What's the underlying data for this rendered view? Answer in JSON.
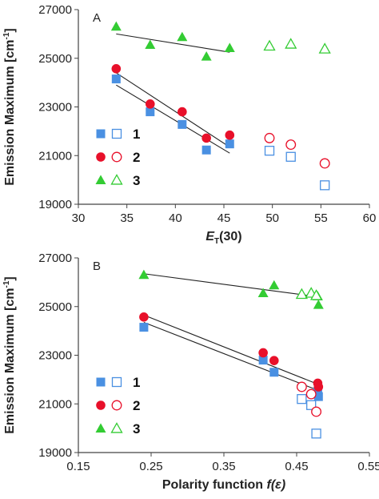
{
  "colors": {
    "series1": "#4a90e2",
    "series2": "#e8102a",
    "series3": "#33cc33",
    "axis": "#444444",
    "fit": "#222222"
  },
  "chart_data": [
    {
      "type": "scatter",
      "panel_label": "A",
      "xlabel_main": "E",
      "xlabel_sub": "T",
      "xlabel_tail": "(30)",
      "ylabel_main": "Emission Maximum [cm",
      "ylabel_sup": "-1",
      "ylabel_close": "]",
      "xlim": [
        30,
        60
      ],
      "ylim": [
        19000,
        27000
      ],
      "xticks": [
        "30",
        "35",
        "40",
        "45",
        "50",
        "55",
        "60"
      ],
      "xtick_values": [
        30,
        35,
        40,
        45,
        50,
        55,
        60
      ],
      "yticks": [
        "19000",
        "21000",
        "23000",
        "25000",
        "27000"
      ],
      "ytick_values": [
        19000,
        21000,
        23000,
        25000,
        27000
      ],
      "grid": false,
      "legend_position": "bottom-left",
      "series": [
        {
          "name": "1",
          "marker": "square",
          "filled": [
            [
              33.9,
              24150
            ],
            [
              37.4,
              22800
            ],
            [
              40.7,
              22280
            ],
            [
              43.2,
              21230
            ],
            [
              45.6,
              21480
            ]
          ],
          "open": [
            [
              49.7,
              21200
            ],
            [
              51.9,
              20950
            ],
            [
              55.4,
              19780
            ]
          ],
          "fit": [
            [
              33.9,
              23900
            ],
            [
              45.6,
              21100
            ]
          ]
        },
        {
          "name": "2",
          "marker": "circle",
          "filled": [
            [
              33.9,
              24570
            ],
            [
              37.4,
              23120
            ],
            [
              40.7,
              22800
            ],
            [
              43.2,
              21720
            ],
            [
              45.6,
              21840
            ]
          ],
          "open": [
            [
              49.7,
              21720
            ],
            [
              51.9,
              21450
            ],
            [
              55.4,
              20680
            ]
          ],
          "fit": [
            [
              33.9,
              24400
            ],
            [
              45.6,
              21350
            ]
          ]
        },
        {
          "name": "3",
          "marker": "triangle",
          "filled": [
            [
              33.9,
              26300
            ],
            [
              37.4,
              25550
            ],
            [
              40.7,
              25870
            ],
            [
              43.2,
              25070
            ],
            [
              45.6,
              25420
            ]
          ],
          "open": [
            [
              49.7,
              25500
            ],
            [
              51.9,
              25580
            ],
            [
              55.4,
              25380
            ]
          ],
          "fit": [
            [
              33.9,
              26000
            ],
            [
              45.6,
              25250
            ]
          ]
        }
      ]
    },
    {
      "type": "scatter",
      "panel_label": "B",
      "xlabel_main": "Polarity function ",
      "xlabel_italic": "f(ε)",
      "ylabel_main": "Emission Maximum [cm",
      "ylabel_sup": "-1",
      "ylabel_close": "]",
      "xlim": [
        0.15,
        0.55
      ],
      "ylim": [
        19000,
        27000
      ],
      "xticks": [
        "0.15",
        "0.25",
        "0.35",
        "0.45",
        "0.55"
      ],
      "xtick_values": [
        0.15,
        0.25,
        0.35,
        0.45,
        0.55
      ],
      "yticks": [
        "19000",
        "21000",
        "23000",
        "25000",
        "27000"
      ],
      "ytick_values": [
        19000,
        21000,
        23000,
        25000,
        27000
      ],
      "grid": false,
      "legend_position": "bottom-left",
      "series": [
        {
          "name": "1",
          "marker": "square",
          "filled": [
            [
              0.24,
              24150
            ],
            [
              0.404,
              22800
            ],
            [
              0.419,
              22300
            ],
            [
              0.479,
              21500
            ],
            [
              0.48,
              21300
            ]
          ],
          "open": [
            [
              0.457,
              21200
            ],
            [
              0.47,
              20950
            ],
            [
              0.477,
              19780
            ]
          ],
          "fit": [
            [
              0.24,
              24350
            ],
            [
              0.48,
              21550
            ]
          ]
        },
        {
          "name": "2",
          "marker": "circle",
          "filled": [
            [
              0.24,
              24570
            ],
            [
              0.404,
              23100
            ],
            [
              0.419,
              22780
            ],
            [
              0.479,
              21850
            ],
            [
              0.48,
              21700
            ]
          ],
          "open": [
            [
              0.457,
              21700
            ],
            [
              0.47,
              21400
            ],
            [
              0.477,
              20680
            ]
          ],
          "fit": [
            [
              0.24,
              24650
            ],
            [
              0.48,
              21800
            ]
          ]
        },
        {
          "name": "3",
          "marker": "triangle",
          "filled": [
            [
              0.24,
              26300
            ],
            [
              0.404,
              25550
            ],
            [
              0.419,
              25870
            ],
            [
              0.479,
              25420
            ],
            [
              0.48,
              25070
            ]
          ],
          "open": [
            [
              0.457,
              25500
            ],
            [
              0.47,
              25550
            ],
            [
              0.477,
              25450
            ]
          ],
          "fit": [
            [
              0.24,
              26350
            ],
            [
              0.48,
              25400
            ]
          ]
        }
      ]
    }
  ]
}
